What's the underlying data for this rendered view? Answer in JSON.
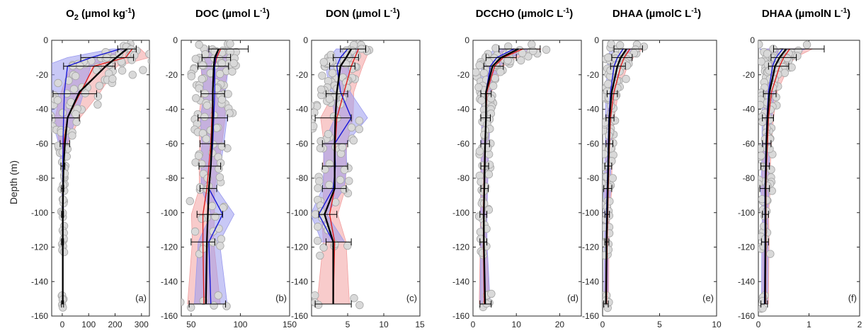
{
  "figure": {
    "ylabel": "Depth (m)",
    "colors": {
      "scatter_fill": "#d9d9d9",
      "scatter_edge": "#a6a6a6",
      "mean": "#000000",
      "blue": "#1a1ad6",
      "red": "#e02020",
      "blue_band": "#9a9aee",
      "red_band": "#f2a0a0"
    }
  },
  "chart_data": [
    {
      "type": "line",
      "title": "O2 (µmol kg-1)",
      "title_parts": {
        "main": "O",
        "sub": "2",
        "mid": " (µmol kg",
        "sup": "-1",
        "end": ")"
      },
      "panel_label": "(a)",
      "ylabel": "Depth (m)",
      "xlim": [
        -40,
        330
      ],
      "ylim": [
        -160,
        0
      ],
      "xticks": [
        "0",
        "100",
        "200",
        "300"
      ],
      "xtick_values": [
        0,
        100,
        200,
        300
      ],
      "yticks": [
        "0",
        "-20",
        "-40",
        "-60",
        "-80",
        "-100",
        "-120",
        "-140",
        "-160"
      ],
      "grid": false,
      "series": [
        {
          "role": "mean",
          "x": [
            245,
            165,
            65,
            20,
            10,
            5,
            3,
            2,
            2,
            2,
            2
          ],
          "y": [
            -5,
            -15,
            -30,
            -45,
            -60,
            -73,
            -86,
            -101,
            -117,
            -130,
            -153
          ]
        },
        {
          "role": "blue",
          "x": [
            220,
            110,
            20,
            8,
            5,
            3,
            2,
            2,
            2
          ],
          "y": [
            -5,
            -10,
            -15,
            -30,
            -45,
            -60,
            -73,
            -86,
            -101
          ]
        },
        {
          "role": "red",
          "x": [
            265,
            240,
            120,
            70,
            20,
            5,
            3,
            2,
            2
          ],
          "y": [
            -5,
            -10,
            -15,
            -30,
            -45,
            -60,
            -73,
            -86,
            -101
          ]
        }
      ],
      "mean_error_bars": [
        {
          "y": -5,
          "lo": 210,
          "hi": 280
        },
        {
          "y": -10,
          "lo": 70,
          "hi": 270
        },
        {
          "y": -15,
          "lo": 5,
          "hi": 200
        },
        {
          "y": -31,
          "lo": -35,
          "hi": 130
        },
        {
          "y": -45,
          "lo": -40,
          "hi": 65
        },
        {
          "y": -60,
          "lo": -8,
          "hi": 28
        },
        {
          "y": -73,
          "lo": -5,
          "hi": 10
        },
        {
          "y": -86,
          "lo": -3,
          "hi": 6
        },
        {
          "y": -101,
          "lo": -3,
          "hi": 5
        },
        {
          "y": -117,
          "lo": -3,
          "hi": 5
        },
        {
          "y": -153,
          "lo": -3,
          "hi": 5
        }
      ]
    },
    {
      "type": "line",
      "title": "DOC (µmol L-1)",
      "title_parts": {
        "main": "DOC (µmol L",
        "sup": "-1",
        "end": ")"
      },
      "panel_label": "(b)",
      "xlim": [
        40,
        150
      ],
      "ylim": [
        -160,
        0
      ],
      "xticks": [
        "50",
        "100",
        "150"
      ],
      "xtick_values": [
        50,
        100,
        150
      ],
      "yticks": [
        "0",
        "-20",
        "-40",
        "-60",
        "-80",
        "-100",
        "-120",
        "-140",
        "-160"
      ],
      "grid": false,
      "series": [
        {
          "role": "mean",
          "x": [
            78,
            74,
            73,
            72,
            72,
            71,
            70,
            68,
            67,
            66,
            65
          ],
          "y": [
            -5,
            -10,
            -15,
            -30,
            -45,
            -60,
            -73,
            -86,
            -101,
            -117,
            -153
          ]
        },
        {
          "role": "blue",
          "x": [
            78,
            75,
            74,
            74,
            73,
            72,
            70,
            68,
            82,
            68,
            70
          ],
          "y": [
            -5,
            -10,
            -15,
            -30,
            -45,
            -60,
            -73,
            -86,
            -101,
            -117,
            -153
          ]
        },
        {
          "role": "red",
          "x": [
            80,
            76,
            74,
            72,
            71,
            70,
            68,
            66,
            62,
            62,
            63
          ],
          "y": [
            -5,
            -10,
            -15,
            -30,
            -45,
            -60,
            -73,
            -86,
            -101,
            -117,
            -153
          ]
        }
      ],
      "mean_error_bars": [
        {
          "y": -5,
          "lo": 68,
          "hi": 108
        },
        {
          "y": -10,
          "lo": 61,
          "hi": 90
        },
        {
          "y": -15,
          "lo": 57,
          "hi": 88
        },
        {
          "y": -31,
          "lo": 60,
          "hi": 84
        },
        {
          "y": -45,
          "lo": 57,
          "hi": 87
        },
        {
          "y": -60,
          "lo": 59,
          "hi": 84
        },
        {
          "y": -73,
          "lo": 58,
          "hi": 80
        },
        {
          "y": -86,
          "lo": 59,
          "hi": 76
        },
        {
          "y": -101,
          "lo": 56,
          "hi": 82
        },
        {
          "y": -117,
          "lo": 50,
          "hi": 74
        },
        {
          "y": -153,
          "lo": 48,
          "hi": 85
        }
      ]
    },
    {
      "type": "line",
      "title": "DON (µmol L-1)",
      "title_parts": {
        "main": "DON (µmol L",
        "sup": "-1",
        "end": ")"
      },
      "panel_label": "(c)",
      "xlim": [
        0,
        15
      ],
      "ylim": [
        -160,
        0
      ],
      "xticks": [
        "5",
        "10",
        "15"
      ],
      "xtick_values": [
        5,
        10,
        15
      ],
      "yticks": [
        "0",
        "-20",
        "-40",
        "-60",
        "-80",
        "-100",
        "-120",
        "-140",
        "-160"
      ],
      "grid": false,
      "series": [
        {
          "role": "mean",
          "x": [
            5.5,
            4.8,
            4.0,
            3.5,
            3.3,
            3.2,
            3.2,
            3.2,
            1.8,
            3.0,
            3.0
          ],
          "y": [
            -5,
            -10,
            -15,
            -30,
            -45,
            -60,
            -73,
            -86,
            -101,
            -117,
            -153
          ]
        },
        {
          "role": "blue",
          "x": [
            5.0,
            4.0,
            3.5,
            4.0,
            5.5,
            3.2,
            3.3,
            3.0,
            1.0,
            3.0
          ],
          "y": [
            -5,
            -10,
            -15,
            -30,
            -45,
            -60,
            -73,
            -86,
            -101,
            -117
          ]
        },
        {
          "role": "red",
          "x": [
            6.5,
            6.0,
            5.5,
            4.5,
            3.5,
            3.3,
            3.2,
            3.2,
            2.5,
            3.2,
            3.0
          ],
          "y": [
            -5,
            -10,
            -15,
            -30,
            -45,
            -60,
            -73,
            -86,
            -101,
            -117,
            -153
          ]
        }
      ],
      "mean_error_bars": [
        {
          "y": -5,
          "lo": 4.0,
          "hi": 7.5
        },
        {
          "y": -10,
          "lo": 3.0,
          "hi": 6.5
        },
        {
          "y": -15,
          "lo": 2.5,
          "hi": 6.0
        },
        {
          "y": -31,
          "lo": 2.0,
          "hi": 5.0
        },
        {
          "y": -45,
          "lo": 0.5,
          "hi": 5.5
        },
        {
          "y": -60,
          "lo": 1.5,
          "hi": 5.0
        },
        {
          "y": -73,
          "lo": 1.5,
          "hi": 5.0
        },
        {
          "y": -86,
          "lo": 1.5,
          "hi": 4.8
        },
        {
          "y": -101,
          "lo": 1.0,
          "hi": 3.5
        },
        {
          "y": -117,
          "lo": 2.0,
          "hi": 5.5
        },
        {
          "y": -153,
          "lo": 0.5,
          "hi": 5.5
        }
      ]
    },
    {
      "type": "line",
      "title": "DCCHO (µmolC L-1)",
      "title_parts": {
        "main": "DCCHO (µmolC L",
        "sup": "-1",
        "end": ")"
      },
      "panel_label": "(d)",
      "xlim": [
        0,
        25
      ],
      "ylim": [
        -160,
        0
      ],
      "xticks": [
        "0",
        "10",
        "20"
      ],
      "xtick_values": [
        0,
        10,
        20
      ],
      "yticks": [
        "0",
        "-20",
        "-40",
        "-60",
        "-80",
        "-100",
        "-120",
        "-140",
        "-160"
      ],
      "grid": false,
      "series": [
        {
          "role": "mean",
          "x": [
            10.5,
            6.5,
            4.5,
            3.0,
            3.0,
            2.8,
            2.7,
            2.6,
            2.5,
            2.5,
            2.8
          ],
          "y": [
            -5,
            -10,
            -15,
            -30,
            -45,
            -60,
            -73,
            -86,
            -101,
            -117,
            -153
          ]
        },
        {
          "role": "blue",
          "x": [
            9.5,
            5.5,
            4.0,
            3.0,
            3.0,
            2.8,
            2.7,
            2.6,
            2.5,
            2.5,
            2.8
          ],
          "y": [
            -5,
            -10,
            -15,
            -30,
            -45,
            -60,
            -73,
            -86,
            -101,
            -117,
            -153
          ]
        },
        {
          "role": "red",
          "x": [
            11.5,
            7.0,
            5.0,
            3.2,
            3.0,
            2.8,
            2.6,
            2.5,
            2.4,
            2.4,
            2.6
          ],
          "y": [
            -5,
            -10,
            -15,
            -30,
            -45,
            -60,
            -73,
            -86,
            -101,
            -117,
            -153
          ]
        }
      ],
      "mean_error_bars": [
        {
          "y": -5,
          "lo": 6.0,
          "hi": 15.5
        },
        {
          "y": -10,
          "lo": 3.0,
          "hi": 10.0
        },
        {
          "y": -15,
          "lo": 2.5,
          "hi": 7.0
        },
        {
          "y": -31,
          "lo": 1.8,
          "hi": 4.2
        },
        {
          "y": -45,
          "lo": 1.8,
          "hi": 4.0
        },
        {
          "y": -60,
          "lo": 1.8,
          "hi": 3.8
        },
        {
          "y": -73,
          "lo": 1.8,
          "hi": 3.6
        },
        {
          "y": -86,
          "lo": 1.8,
          "hi": 3.5
        },
        {
          "y": -101,
          "lo": 1.6,
          "hi": 3.2
        },
        {
          "y": -117,
          "lo": 1.6,
          "hi": 3.2
        },
        {
          "y": -153,
          "lo": 1.6,
          "hi": 4.2
        }
      ]
    },
    {
      "type": "line",
      "title": "DHAA (µmolC L-1)",
      "title_parts": {
        "main": "DHAA (µmolC L",
        "sup": "-1",
        "end": ")"
      },
      "panel_label": "(e)",
      "xlim": [
        0,
        10
      ],
      "ylim": [
        -160,
        0
      ],
      "xticks": [
        "0",
        "5",
        "10"
      ],
      "xtick_values": [
        0,
        5,
        10
      ],
      "yticks": [
        "0",
        "-20",
        "-40",
        "-60",
        "-80",
        "-100",
        "-120",
        "-140",
        "-160"
      ],
      "grid": false,
      "series": [
        {
          "role": "mean",
          "x": [
            2.1,
            1.6,
            1.3,
            0.8,
            0.6,
            0.55,
            0.5,
            0.45,
            0.4,
            0.35,
            0.3
          ],
          "y": [
            -5,
            -10,
            -15,
            -30,
            -45,
            -60,
            -73,
            -86,
            -101,
            -117,
            -153
          ]
        },
        {
          "role": "blue",
          "x": [
            1.8,
            1.3,
            1.0,
            0.7,
            0.55,
            0.5,
            0.45,
            0.4,
            0.35,
            0.32,
            0.3
          ],
          "y": [
            -5,
            -10,
            -15,
            -30,
            -45,
            -60,
            -73,
            -86,
            -101,
            -117,
            -153
          ]
        },
        {
          "role": "red",
          "x": [
            2.4,
            1.9,
            1.6,
            1.0,
            0.7,
            0.6,
            0.55,
            0.5,
            0.45,
            0.4,
            0.35
          ],
          "y": [
            -5,
            -10,
            -15,
            -30,
            -45,
            -60,
            -73,
            -86,
            -101,
            -117,
            -153
          ]
        }
      ],
      "mean_error_bars": [
        {
          "y": -5,
          "lo": 1.0,
          "hi": 3.5
        },
        {
          "y": -10,
          "lo": 0.8,
          "hi": 2.6
        },
        {
          "y": -15,
          "lo": 0.7,
          "hi": 2.0
        },
        {
          "y": -31,
          "lo": 0.4,
          "hi": 1.3
        },
        {
          "y": -45,
          "lo": 0.3,
          "hi": 1.0
        },
        {
          "y": -60,
          "lo": 0.3,
          "hi": 0.9
        },
        {
          "y": -73,
          "lo": 0.2,
          "hi": 0.8
        },
        {
          "y": -86,
          "lo": 0.1,
          "hi": 0.8
        },
        {
          "y": -101,
          "lo": 0.2,
          "hi": 0.6
        },
        {
          "y": -117,
          "lo": 0.2,
          "hi": 0.55
        },
        {
          "y": -153,
          "lo": 0.1,
          "hi": 0.5
        }
      ]
    },
    {
      "type": "line",
      "title": "DHAA (µmolN L-1)",
      "title_parts": {
        "main": "DHAA (µmolN L",
        "sup": "-1",
        "end": ")"
      },
      "panel_label": "(f)",
      "xlim": [
        0,
        2
      ],
      "ylim": [
        -160,
        0
      ],
      "xticks": [
        "0",
        "1",
        "2"
      ],
      "xtick_values": [
        0,
        1,
        2
      ],
      "yticks": [
        "0",
        "-20",
        "-40",
        "-60",
        "-80",
        "-100",
        "-120",
        "-140",
        "-160"
      ],
      "grid": false,
      "series": [
        {
          "role": "mean",
          "x": [
            0.55,
            0.42,
            0.33,
            0.22,
            0.18,
            0.16,
            0.15,
            0.14,
            0.14,
            0.14,
            0.13
          ],
          "y": [
            -5,
            -10,
            -15,
            -30,
            -45,
            -60,
            -73,
            -86,
            -101,
            -117,
            -153
          ]
        },
        {
          "role": "blue",
          "x": [
            0.48,
            0.35,
            0.28,
            0.2,
            0.17,
            0.15,
            0.14,
            0.13,
            0.13,
            0.13,
            0.12
          ],
          "y": [
            -5,
            -10,
            -15,
            -30,
            -45,
            -60,
            -73,
            -86,
            -101,
            -117,
            -153
          ]
        },
        {
          "role": "red",
          "x": [
            0.62,
            0.5,
            0.42,
            0.26,
            0.2,
            0.18,
            0.16,
            0.15,
            0.15,
            0.15,
            0.14
          ],
          "y": [
            -5,
            -10,
            -15,
            -30,
            -45,
            -60,
            -73,
            -86,
            -101,
            -117,
            -153
          ]
        }
      ],
      "mean_error_bars": [
        {
          "y": -5,
          "lo": 0.3,
          "hi": 1.3
        },
        {
          "y": -10,
          "lo": 0.25,
          "hi": 0.75
        },
        {
          "y": -15,
          "lo": 0.2,
          "hi": 0.6
        },
        {
          "y": -31,
          "lo": 0.1,
          "hi": 0.35
        },
        {
          "y": -45,
          "lo": 0.08,
          "hi": 0.3
        },
        {
          "y": -60,
          "lo": 0.08,
          "hi": 0.25
        },
        {
          "y": -73,
          "lo": 0.05,
          "hi": 0.22
        },
        {
          "y": -86,
          "lo": 0.03,
          "hi": 0.22
        },
        {
          "y": -101,
          "lo": 0.08,
          "hi": 0.2
        },
        {
          "y": -117,
          "lo": 0.06,
          "hi": 0.2
        },
        {
          "y": -153,
          "lo": 0.05,
          "hi": 0.18
        }
      ]
    }
  ]
}
